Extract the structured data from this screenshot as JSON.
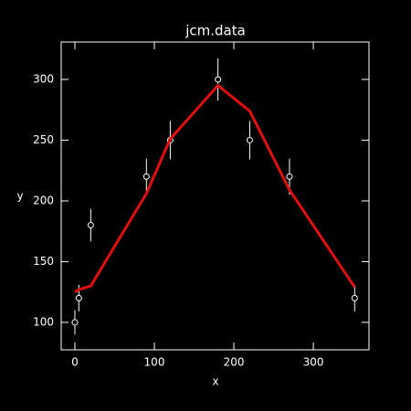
{
  "chart_data": {
    "type": "line",
    "title": "jcm.data",
    "x_label": "x",
    "y_label": "y",
    "x": [
      0,
      5,
      20,
      90,
      120,
      180,
      220,
      270,
      352
    ],
    "series": [
      {
        "style": "points",
        "color": "#ffffff",
        "values": [
          100,
          120,
          180,
          220,
          250,
          300,
          250,
          220,
          120
        ],
        "errors": [
          10,
          10.95,
          13.4,
          14.8,
          15.8,
          17.3,
          15.8,
          14.8,
          10.95
        ]
      },
      {
        "style": "line",
        "color": "#e01010",
        "values": [
          125,
          127,
          130,
          206,
          251,
          295,
          274,
          209,
          129
        ]
      }
    ],
    "xlim": [
      -17.2,
      370
    ],
    "xticks": [
      0,
      100,
      200,
      300
    ],
    "ylim": [
      77.4,
      330.8
    ],
    "yticks": [
      100,
      150,
      200,
      250,
      300
    ]
  }
}
